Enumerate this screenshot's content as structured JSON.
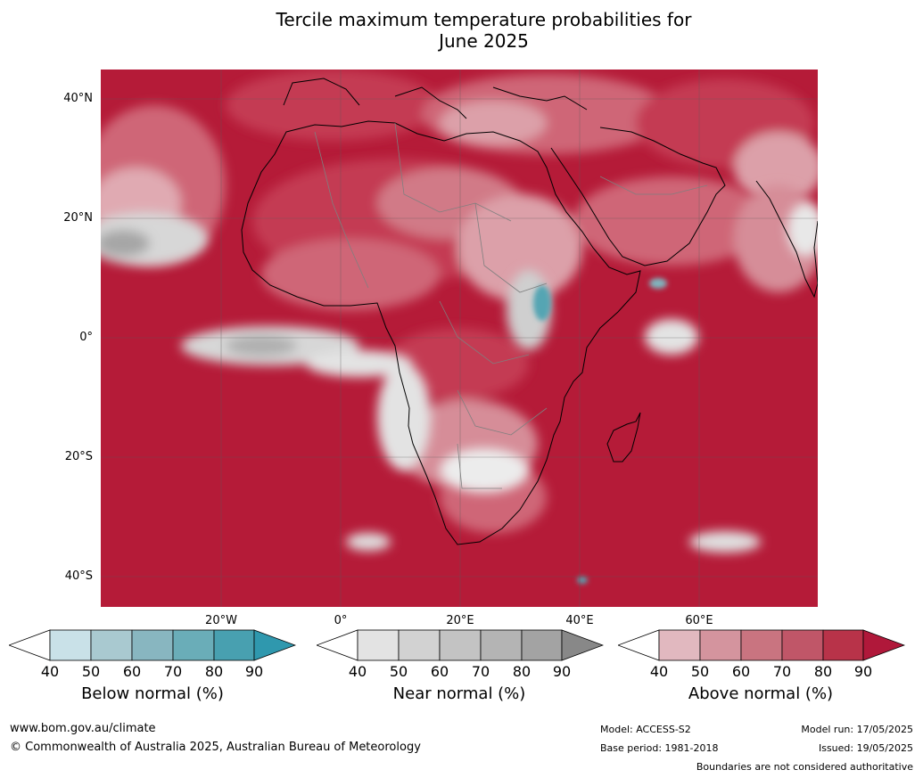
{
  "title": {
    "line1": "Tercile maximum temperature probabilities for",
    "line2": "June 2025"
  },
  "map": {
    "latitude_labels": [
      "40°N",
      "20°N",
      "0°",
      "20°S",
      "40°S"
    ],
    "longitude_labels": [
      "20°W",
      "0°",
      "20°E",
      "40°E",
      "60°E"
    ],
    "dominant_category": "Above normal",
    "colors": {
      "above_dark": "#b51b38",
      "ocean_mid": "#c43a52",
      "land_mid": "#cf6677",
      "light_pink": "#dca0a9",
      "near_grey": "#bdbdbd",
      "below_teal": "#55a5b3",
      "border": "#7f7f7f",
      "coast": "#000000"
    }
  },
  "colorbars": [
    {
      "label": "Below normal (%)",
      "ticks": [
        "40",
        "50",
        "60",
        "70",
        "80",
        "90"
      ],
      "colors": [
        "#ffffff",
        "#c9e1e8",
        "#a9c9d0",
        "#88b6c0",
        "#6aadb8",
        "#48a0b0",
        "#2f98ae"
      ]
    },
    {
      "label": "Near normal (%)",
      "ticks": [
        "40",
        "50",
        "60",
        "70",
        "80",
        "90"
      ],
      "colors": [
        "#ffffff",
        "#e3e3e3",
        "#d2d2d2",
        "#c3c3c3",
        "#b4b4b4",
        "#a3a3a3",
        "#888888"
      ]
    },
    {
      "label": "Above normal (%)",
      "ticks": [
        "40",
        "50",
        "60",
        "70",
        "80",
        "90"
      ],
      "colors": [
        "#ffffff",
        "#e1b8bf",
        "#d4949e",
        "#c97480",
        "#c05668",
        "#b83349",
        "#b0183a"
      ]
    }
  ],
  "footer": {
    "website": "www.bom.gov.au/climate",
    "copyright": "© Commonwealth of Australia 2025, Australian Bureau of Meteorology",
    "model": "Model: ACCESS-S2",
    "base_period": "Base period: 1981-2018",
    "model_run": "Model run: 17/05/2025",
    "issued": "Issued: 19/05/2025",
    "disclaimer": "Boundaries are not considered authoritative"
  }
}
